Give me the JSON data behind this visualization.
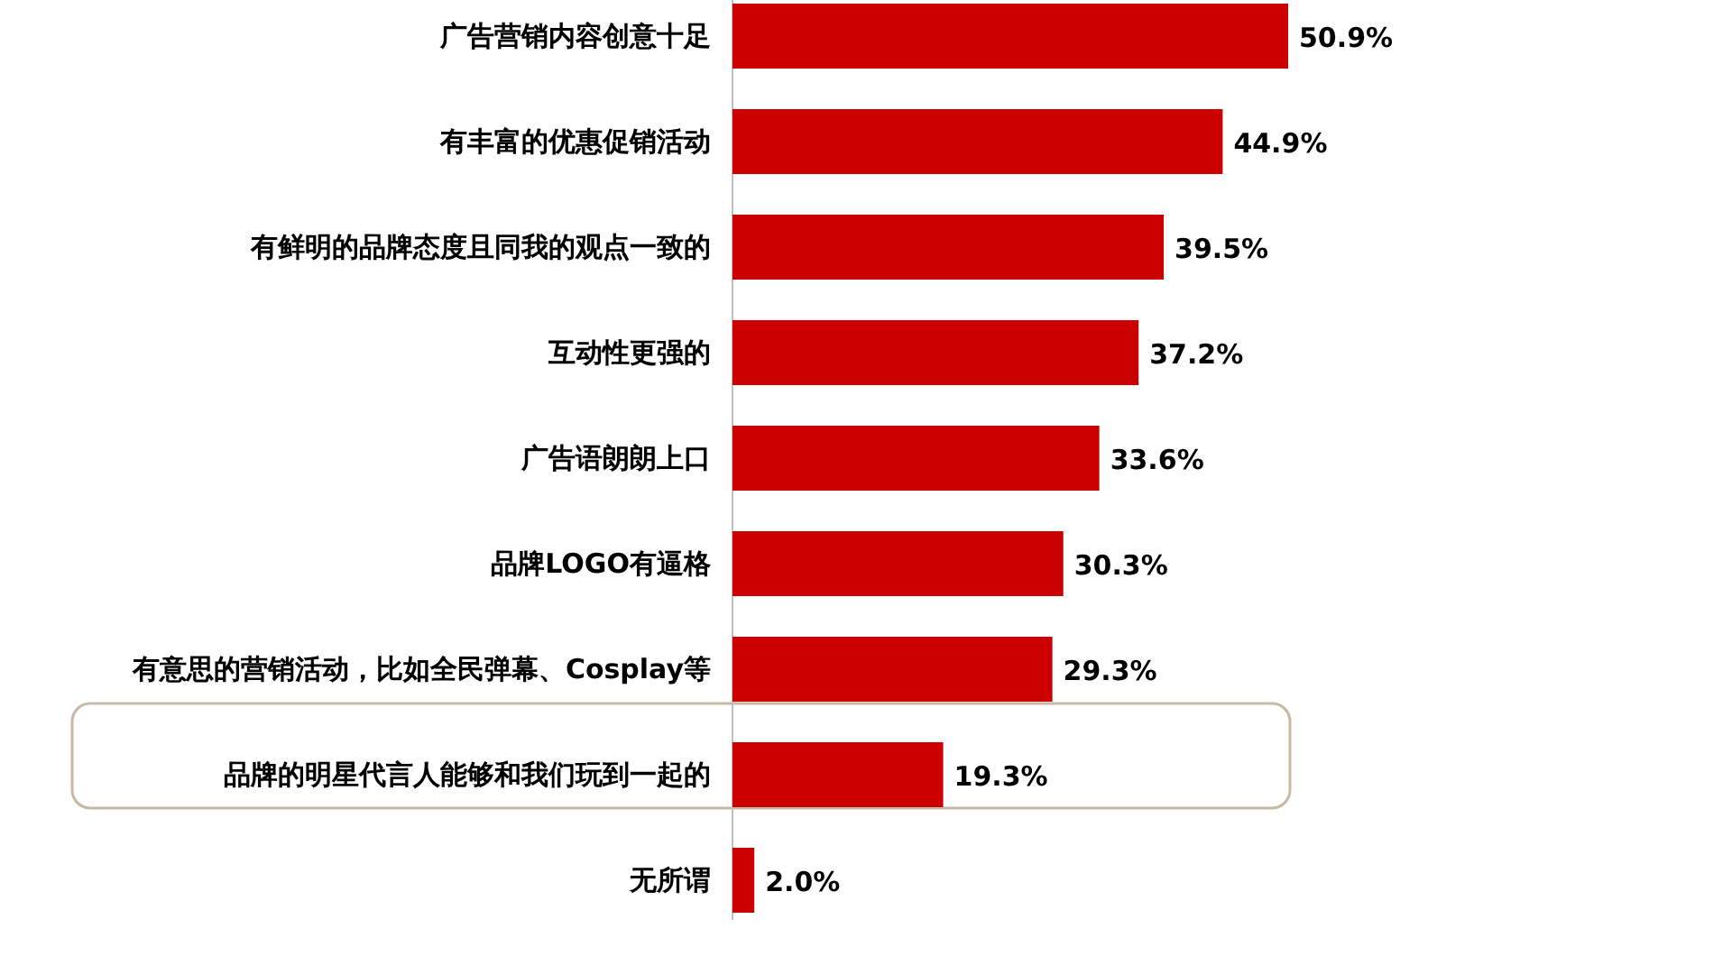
{
  "chart_data": {
    "type": "bar",
    "orientation": "horizontal",
    "categories": [
      "广告营销内容创意十足",
      "有丰富的优惠促销活动",
      "有鲜明的品牌态度且同我的观点一致的",
      "互动性更强的",
      "广告语朗朗上口",
      "品牌LOGO有逼格",
      "有意思的营销活动，比如全民弹幕、Cosplay等",
      "品牌的明星代言人能够和我们玩到一起的",
      "无所谓"
    ],
    "values": [
      50.9,
      44.9,
      39.5,
      37.2,
      33.6,
      30.3,
      29.3,
      19.3,
      2.0
    ],
    "value_labels": [
      "50.9%",
      "44.9%",
      "39.5%",
      "37.2%",
      "33.6%",
      "30.3%",
      "29.3%",
      "19.3%",
      "2.0%"
    ],
    "color": "#cc0000"
  }
}
